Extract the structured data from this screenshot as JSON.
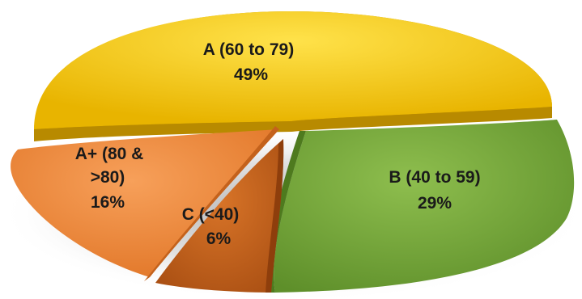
{
  "chart_data": {
    "type": "pie",
    "title": "",
    "legend": "none",
    "slices": [
      {
        "name": "A (60 to 79)",
        "value": 49,
        "value_label": "49%",
        "color": "#F2C200"
      },
      {
        "name": "B (40 to 59)",
        "value": 29,
        "value_label": "29%",
        "color": "#77A53C"
      },
      {
        "name": "C (<40)",
        "value": 6,
        "value_label": "6%",
        "color": "#C8641A"
      },
      {
        "name": "A+ (80 & >80)",
        "value": 16,
        "value_label": "16%",
        "color": "#EE8A3C"
      }
    ]
  }
}
